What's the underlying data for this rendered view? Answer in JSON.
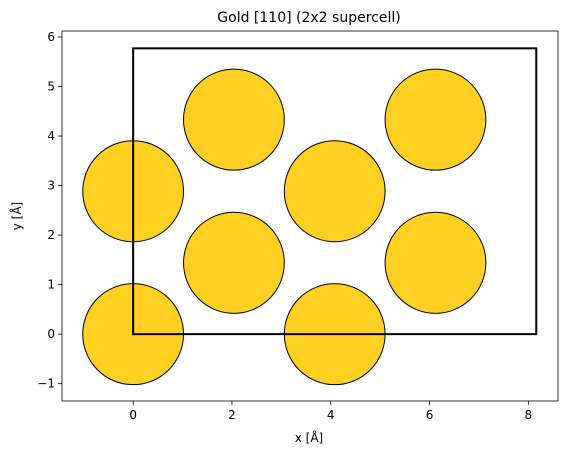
{
  "chart_data": {
    "type": "scatter",
    "title": "Gold [110] (2x2 supercell)",
    "xlabel": "x [Å]",
    "ylabel": "y [Å]",
    "xlim": [
      -1.44,
      8.6
    ],
    "ylim": [
      -1.35,
      6.12
    ],
    "xticks": [
      0,
      2,
      4,
      6,
      8
    ],
    "xtick_labels": [
      "0",
      "2",
      "4",
      "6",
      "8"
    ],
    "yticks": [
      -1,
      0,
      1,
      2,
      3,
      4,
      5,
      6
    ],
    "ytick_labels": [
      "−1",
      "0",
      "1",
      "2",
      "3",
      "4",
      "5",
      "6"
    ],
    "grid": false,
    "atom_radius": 1.02,
    "atom_color": "#FDD021",
    "atom_edge_color": "#000000",
    "atoms": [
      {
        "x": 0.0,
        "y": 0.0
      },
      {
        "x": 4.08,
        "y": 0.0
      },
      {
        "x": 2.04,
        "y": 1.44
      },
      {
        "x": 6.12,
        "y": 1.44
      },
      {
        "x": 0.0,
        "y": 2.885
      },
      {
        "x": 4.08,
        "y": 2.885
      },
      {
        "x": 2.04,
        "y": 4.33
      },
      {
        "x": 6.12,
        "y": 4.33
      }
    ],
    "cell": {
      "x0": 0.0,
      "y0": 0.0,
      "x1": 8.16,
      "y1": 5.77,
      "color": "#000000"
    }
  }
}
